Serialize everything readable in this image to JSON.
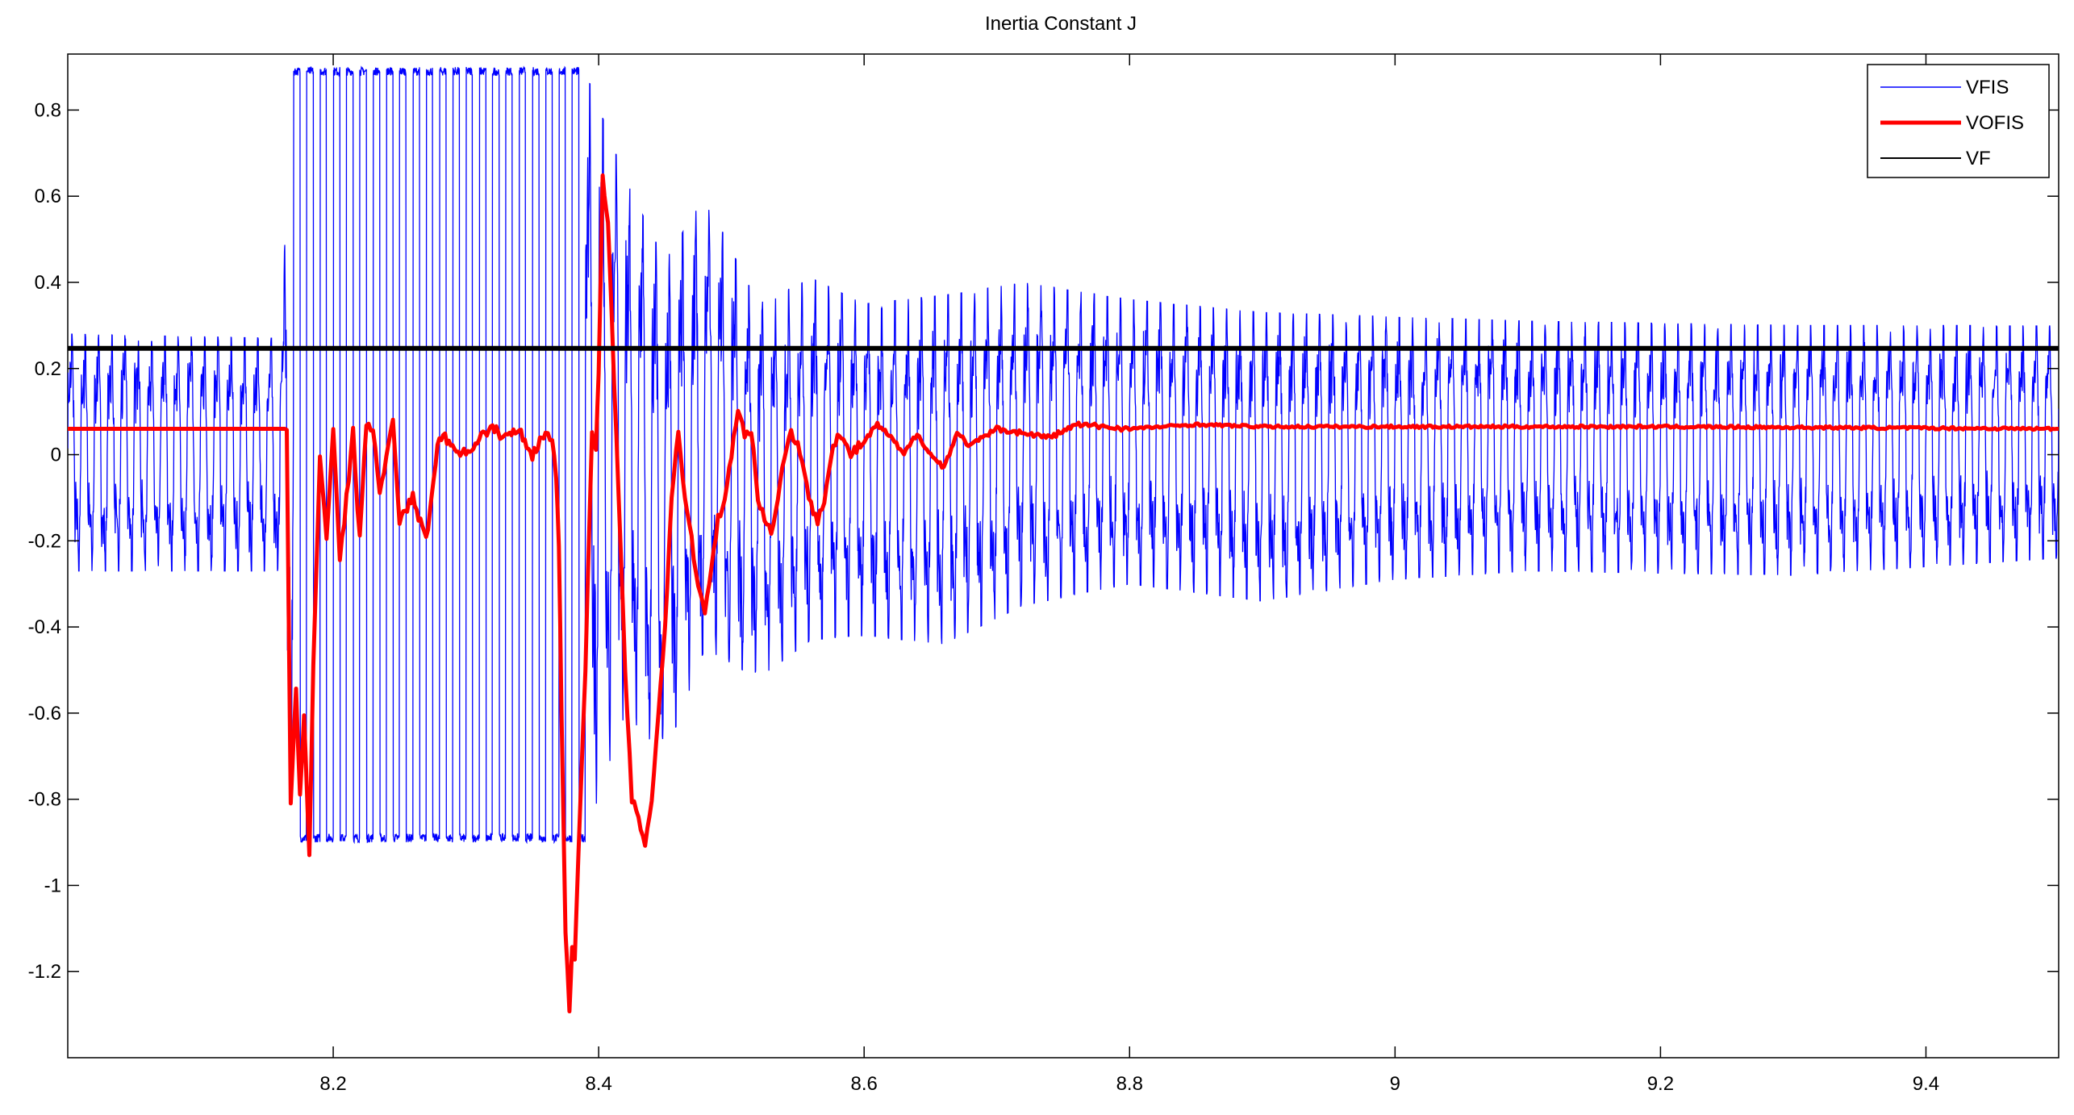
{
  "chart_data": {
    "type": "line",
    "title": "Inertia Constant J",
    "xlabel": "",
    "ylabel": "",
    "xlim": [
      8.0,
      9.5
    ],
    "ylim": [
      -1.4,
      0.93
    ],
    "xticks": [
      8.2,
      8.4,
      8.6,
      8.8,
      9.0,
      9.2,
      9.4
    ],
    "xtick_labels": [
      "8.2",
      "8.4",
      "8.6",
      "8.8",
      "9",
      "9.2",
      "9.4"
    ],
    "yticks": [
      0.8,
      0.6,
      0.4,
      0.2,
      0,
      -0.2,
      -0.4,
      -0.6,
      -0.8,
      -1,
      -1.2
    ],
    "ytick_labels": [
      "0.8",
      "0.6",
      "0.4",
      "0.2",
      "0",
      "-0.2",
      "-0.4",
      "-0.6",
      "-0.8",
      "-1",
      "-1.2"
    ],
    "grid": false,
    "legend_position": "top-right",
    "series": [
      {
        "name": "VFIS",
        "color": "#0000ff",
        "style": "oscillating",
        "oscillation_period": 0.01,
        "envelope": [
          {
            "x": 8.0,
            "max": 0.28,
            "min": -0.27
          },
          {
            "x": 8.16,
            "max": 0.27,
            "min": -0.27
          },
          {
            "x": 8.17,
            "max": 0.89,
            "min": -0.89
          },
          {
            "x": 8.39,
            "max": 0.89,
            "min": -0.89
          },
          {
            "x": 8.42,
            "max": 0.64,
            "min": -0.6
          },
          {
            "x": 8.45,
            "max": 0.45,
            "min": -0.7
          },
          {
            "x": 8.48,
            "max": 0.6,
            "min": -0.45
          },
          {
            "x": 8.52,
            "max": 0.35,
            "min": -0.52
          },
          {
            "x": 8.56,
            "max": 0.41,
            "min": -0.43
          },
          {
            "x": 8.6,
            "max": 0.35,
            "min": -0.42
          },
          {
            "x": 8.66,
            "max": 0.37,
            "min": -0.44
          },
          {
            "x": 8.72,
            "max": 0.4,
            "min": -0.35
          },
          {
            "x": 8.8,
            "max": 0.36,
            "min": -0.3
          },
          {
            "x": 8.9,
            "max": 0.33,
            "min": -0.34
          },
          {
            "x": 9.0,
            "max": 0.32,
            "min": -0.29
          },
          {
            "x": 9.1,
            "max": 0.31,
            "min": -0.27
          },
          {
            "x": 9.3,
            "max": 0.3,
            "min": -0.28
          },
          {
            "x": 9.5,
            "max": 0.3,
            "min": -0.24
          }
        ]
      },
      {
        "name": "VOFIS",
        "color": "#ff0000",
        "x": [
          8.0,
          8.165,
          8.168,
          8.172,
          8.175,
          8.178,
          8.182,
          8.185,
          8.19,
          8.195,
          8.2,
          8.205,
          8.21,
          8.215,
          8.22,
          8.225,
          8.23,
          8.235,
          8.24,
          8.245,
          8.25,
          8.26,
          8.27,
          8.28,
          8.29,
          8.3,
          8.31,
          8.32,
          8.33,
          8.34,
          8.35,
          8.36,
          8.365,
          8.368,
          8.37,
          8.372,
          8.375,
          8.378,
          8.38,
          8.382,
          8.385,
          8.39,
          8.395,
          8.398,
          8.4,
          8.403,
          8.407,
          8.41,
          8.415,
          8.42,
          8.425,
          8.43,
          8.435,
          8.44,
          8.445,
          8.45,
          8.455,
          8.46,
          8.465,
          8.47,
          8.475,
          8.48,
          8.485,
          8.49,
          8.495,
          8.5,
          8.505,
          8.51,
          8.515,
          8.52,
          8.525,
          8.53,
          8.535,
          8.54,
          8.545,
          8.55,
          8.555,
          8.56,
          8.565,
          8.57,
          8.575,
          8.58,
          8.59,
          8.6,
          8.61,
          8.62,
          8.63,
          8.64,
          8.65,
          8.66,
          8.67,
          8.68,
          8.7,
          8.72,
          8.74,
          8.76,
          8.78,
          8.8,
          8.85,
          8.9,
          9.0,
          9.2,
          9.5
        ],
        "y": [
          0.06,
          0.06,
          -0.8,
          -0.55,
          -0.8,
          -0.6,
          -0.94,
          -0.5,
          0.0,
          -0.2,
          0.07,
          -0.25,
          -0.1,
          0.05,
          -0.2,
          0.08,
          0.06,
          -0.1,
          0.0,
          0.07,
          -0.15,
          -0.1,
          -0.2,
          0.05,
          0.02,
          0.0,
          0.04,
          0.06,
          0.04,
          0.06,
          0.0,
          0.05,
          0.04,
          -0.05,
          -0.2,
          -0.6,
          -1.1,
          -1.28,
          -1.15,
          -1.18,
          -0.9,
          -0.5,
          0.05,
          0.0,
          0.2,
          0.64,
          0.55,
          0.3,
          -0.1,
          -0.5,
          -0.8,
          -0.85,
          -0.9,
          -0.8,
          -0.6,
          -0.4,
          -0.1,
          0.06,
          -0.1,
          -0.2,
          -0.3,
          -0.37,
          -0.25,
          -0.15,
          -0.1,
          0.0,
          0.1,
          0.05,
          0.06,
          -0.1,
          -0.15,
          -0.18,
          -0.1,
          0.0,
          0.05,
          0.03,
          -0.05,
          -0.12,
          -0.15,
          -0.1,
          0.0,
          0.05,
          0.0,
          0.03,
          0.07,
          0.04,
          0.0,
          0.05,
          0.0,
          -0.03,
          0.05,
          0.02,
          0.06,
          0.05,
          0.04,
          0.07,
          0.065,
          0.06,
          0.07,
          0.065,
          0.065,
          0.065,
          0.06
        ]
      },
      {
        "name": "VF",
        "color": "#000000",
        "x": [
          8.0,
          9.5
        ],
        "y": [
          0.247,
          0.247
        ]
      }
    ]
  }
}
